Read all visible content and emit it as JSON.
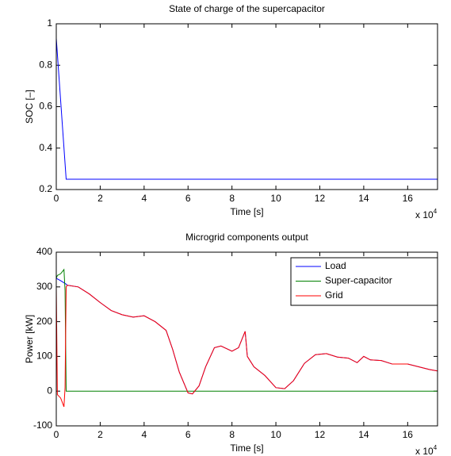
{
  "chart_data": [
    {
      "type": "line",
      "title": "State of charge of the supercapacitor",
      "x_label": "Time [s]",
      "y_label": "SOC [–]",
      "x_scale_label": "x 10",
      "x_scale_exponent": "4",
      "x": [
        0,
        0.45,
        17.36
      ],
      "values": [
        0.93,
        0.25,
        0.25
      ],
      "color": "#0000ff",
      "xlim": [
        0,
        17.36
      ],
      "xticks": [
        0,
        2,
        4,
        6,
        8,
        10,
        12,
        14,
        16
      ],
      "ylim": [
        0.2,
        1
      ],
      "yticks": [
        0.2,
        0.4,
        0.6,
        0.8,
        1
      ],
      "grid": false
    },
    {
      "type": "line",
      "title": "Microgrid components output",
      "x_label": "Time [s]",
      "y_label": "Power [kW]",
      "x_scale_label": "x 10",
      "x_scale_exponent": "4",
      "legend": "northeast",
      "x": [
        0,
        0.05,
        0.2,
        0.35,
        0.4,
        0.45,
        0.5,
        1,
        1.5,
        2,
        2.5,
        3,
        3.5,
        4,
        4.5,
        5,
        5.3,
        5.6,
        6,
        6.2,
        6.5,
        6.8,
        7.2,
        7.5,
        8,
        8.3,
        8.6,
        8.7,
        9,
        9.5,
        10,
        10.4,
        10.8,
        11.3,
        11.8,
        12.3,
        12.8,
        13.3,
        13.7,
        14,
        14.3,
        14.8,
        15.3,
        16,
        16.5,
        17,
        17.36
      ],
      "series": [
        {
          "name": "Load",
          "color": "#0000ff",
          "values": [
            325,
            323,
            318,
            312,
            310,
            308,
            305,
            300,
            280,
            255,
            232,
            220,
            213,
            217,
            200,
            175,
            120,
            55,
            -5,
            -8,
            15,
            70,
            125,
            130,
            115,
            125,
            172,
            100,
            70,
            45,
            10,
            7,
            30,
            80,
            105,
            108,
            98,
            95,
            82,
            100,
            90,
            88,
            78,
            78,
            70,
            62,
            58
          ]
        },
        {
          "name": "Super-capacitor",
          "color": "#008000",
          "values": [
            325,
            333,
            338,
            350,
            290,
            0,
            0,
            0,
            0,
            0,
            0,
            0,
            0,
            0,
            0,
            0,
            0,
            0,
            0,
            0,
            0,
            0,
            0,
            0,
            0,
            0,
            0,
            0,
            0,
            0,
            0,
            0,
            0,
            0,
            0,
            0,
            0,
            0,
            0,
            0,
            0,
            0,
            0,
            0,
            0,
            0,
            0
          ]
        },
        {
          "name": "Grid",
          "color": "#ff0000",
          "values": [
            300,
            -10,
            -20,
            -45,
            10,
            300,
            305,
            300,
            280,
            255,
            232,
            220,
            213,
            217,
            200,
            175,
            120,
            55,
            -5,
            -8,
            15,
            70,
            125,
            130,
            115,
            125,
            172,
            100,
            70,
            45,
            10,
            7,
            30,
            80,
            105,
            108,
            98,
            95,
            82,
            100,
            90,
            88,
            78,
            78,
            70,
            62,
            58
          ]
        }
      ],
      "xlim": [
        0,
        17.36
      ],
      "xticks": [
        0,
        2,
        4,
        6,
        8,
        10,
        12,
        14,
        16
      ],
      "ylim": [
        -100,
        400
      ],
      "yticks": [
        -100,
        0,
        100,
        200,
        300,
        400
      ],
      "grid": false
    }
  ]
}
